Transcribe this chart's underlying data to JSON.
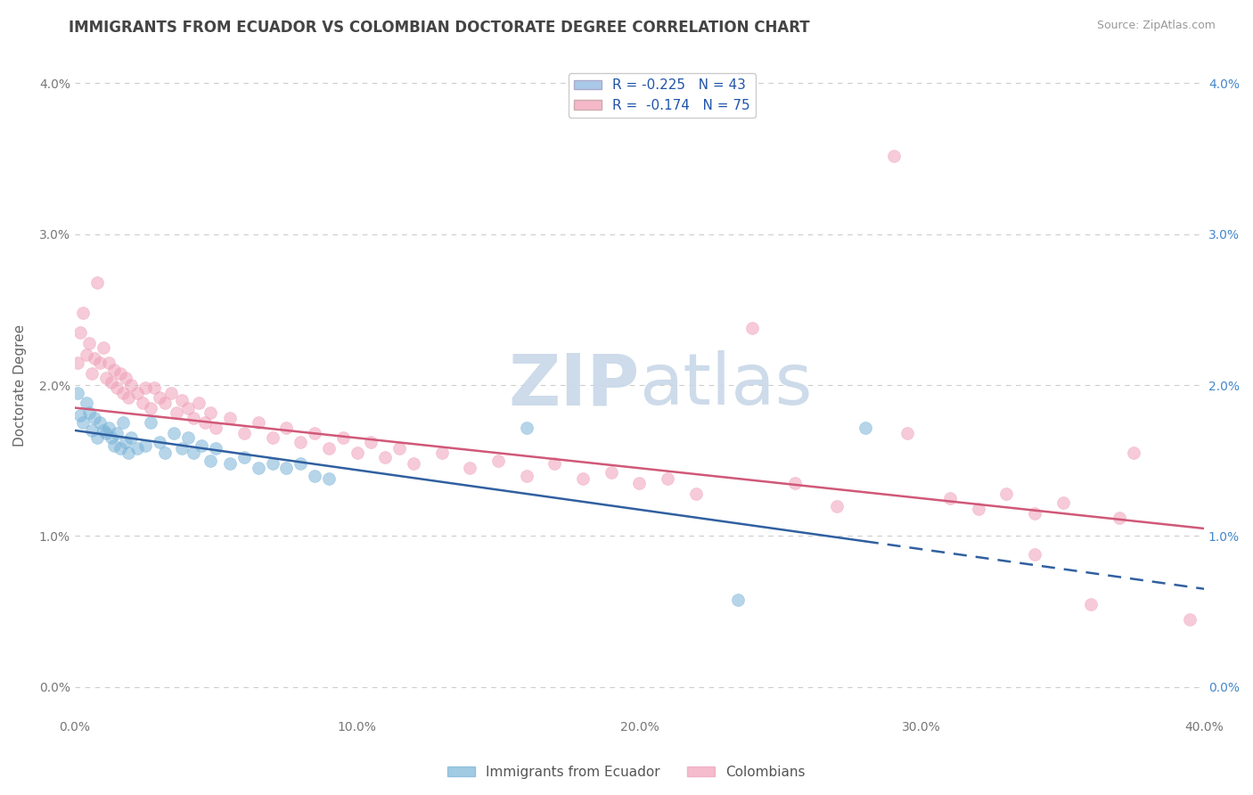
{
  "title": "IMMIGRANTS FROM ECUADOR VS COLOMBIAN DOCTORATE DEGREE CORRELATION CHART",
  "source": "Source: ZipAtlas.com",
  "ylabel": "Doctorate Degree",
  "watermark_zip": "ZIP",
  "watermark_atlas": "atlas",
  "legend_ecuador": {
    "R": -0.225,
    "N": 43,
    "color": "#aac8e8"
  },
  "legend_colombian": {
    "R": -0.174,
    "N": 75,
    "color": "#f4b8c8"
  },
  "ecuador_color": "#7ab4d8",
  "colombian_color": "#f0a0b8",
  "ecuador_line_color": "#3060a0",
  "colombian_line_color": "#d05878",
  "background_color": "#ffffff",
  "grid_color": "#cccccc",
  "xlim": [
    0.0,
    0.4
  ],
  "ylim": [
    -0.002,
    0.042
  ],
  "ecuador_points": [
    [
      0.001,
      0.0195
    ],
    [
      0.002,
      0.018
    ],
    [
      0.003,
      0.0175
    ],
    [
      0.004,
      0.0188
    ],
    [
      0.005,
      0.0182
    ],
    [
      0.006,
      0.017
    ],
    [
      0.007,
      0.0178
    ],
    [
      0.008,
      0.0165
    ],
    [
      0.009,
      0.0175
    ],
    [
      0.01,
      0.017
    ],
    [
      0.011,
      0.0168
    ],
    [
      0.012,
      0.0172
    ],
    [
      0.013,
      0.0165
    ],
    [
      0.014,
      0.016
    ],
    [
      0.015,
      0.0168
    ],
    [
      0.016,
      0.0158
    ],
    [
      0.017,
      0.0175
    ],
    [
      0.018,
      0.0162
    ],
    [
      0.019,
      0.0155
    ],
    [
      0.02,
      0.0165
    ],
    [
      0.022,
      0.0158
    ],
    [
      0.025,
      0.016
    ],
    [
      0.027,
      0.0175
    ],
    [
      0.03,
      0.0162
    ],
    [
      0.032,
      0.0155
    ],
    [
      0.035,
      0.0168
    ],
    [
      0.038,
      0.0158
    ],
    [
      0.04,
      0.0165
    ],
    [
      0.042,
      0.0155
    ],
    [
      0.045,
      0.016
    ],
    [
      0.048,
      0.015
    ],
    [
      0.05,
      0.0158
    ],
    [
      0.055,
      0.0148
    ],
    [
      0.06,
      0.0152
    ],
    [
      0.065,
      0.0145
    ],
    [
      0.07,
      0.0148
    ],
    [
      0.075,
      0.0145
    ],
    [
      0.08,
      0.0148
    ],
    [
      0.085,
      0.014
    ],
    [
      0.09,
      0.0138
    ],
    [
      0.16,
      0.0172
    ],
    [
      0.235,
      0.0058
    ],
    [
      0.28,
      0.0172
    ]
  ],
  "colombian_points": [
    [
      0.001,
      0.0215
    ],
    [
      0.002,
      0.0235
    ],
    [
      0.003,
      0.0248
    ],
    [
      0.004,
      0.022
    ],
    [
      0.005,
      0.0228
    ],
    [
      0.006,
      0.0208
    ],
    [
      0.007,
      0.0218
    ],
    [
      0.008,
      0.0268
    ],
    [
      0.009,
      0.0215
    ],
    [
      0.01,
      0.0225
    ],
    [
      0.011,
      0.0205
    ],
    [
      0.012,
      0.0215
    ],
    [
      0.013,
      0.0202
    ],
    [
      0.014,
      0.021
    ],
    [
      0.015,
      0.0198
    ],
    [
      0.016,
      0.0208
    ],
    [
      0.017,
      0.0195
    ],
    [
      0.018,
      0.0205
    ],
    [
      0.019,
      0.0192
    ],
    [
      0.02,
      0.02
    ],
    [
      0.022,
      0.0195
    ],
    [
      0.024,
      0.0188
    ],
    [
      0.025,
      0.0198
    ],
    [
      0.027,
      0.0185
    ],
    [
      0.028,
      0.0198
    ],
    [
      0.03,
      0.0192
    ],
    [
      0.032,
      0.0188
    ],
    [
      0.034,
      0.0195
    ],
    [
      0.036,
      0.0182
    ],
    [
      0.038,
      0.019
    ],
    [
      0.04,
      0.0185
    ],
    [
      0.042,
      0.0178
    ],
    [
      0.044,
      0.0188
    ],
    [
      0.046,
      0.0175
    ],
    [
      0.048,
      0.0182
    ],
    [
      0.05,
      0.0172
    ],
    [
      0.055,
      0.0178
    ],
    [
      0.06,
      0.0168
    ],
    [
      0.065,
      0.0175
    ],
    [
      0.07,
      0.0165
    ],
    [
      0.075,
      0.0172
    ],
    [
      0.08,
      0.0162
    ],
    [
      0.085,
      0.0168
    ],
    [
      0.09,
      0.0158
    ],
    [
      0.095,
      0.0165
    ],
    [
      0.1,
      0.0155
    ],
    [
      0.105,
      0.0162
    ],
    [
      0.11,
      0.0152
    ],
    [
      0.115,
      0.0158
    ],
    [
      0.12,
      0.0148
    ],
    [
      0.13,
      0.0155
    ],
    [
      0.14,
      0.0145
    ],
    [
      0.15,
      0.015
    ],
    [
      0.16,
      0.014
    ],
    [
      0.17,
      0.0148
    ],
    [
      0.18,
      0.0138
    ],
    [
      0.19,
      0.0142
    ],
    [
      0.2,
      0.0135
    ],
    [
      0.21,
      0.0138
    ],
    [
      0.22,
      0.0128
    ],
    [
      0.24,
      0.0238
    ],
    [
      0.255,
      0.0135
    ],
    [
      0.27,
      0.012
    ],
    [
      0.29,
      0.0352
    ],
    [
      0.295,
      0.0168
    ],
    [
      0.31,
      0.0125
    ],
    [
      0.32,
      0.0118
    ],
    [
      0.33,
      0.0128
    ],
    [
      0.34,
      0.0115
    ],
    [
      0.35,
      0.0122
    ],
    [
      0.37,
      0.0112
    ],
    [
      0.375,
      0.0155
    ],
    [
      0.395,
      0.0045
    ],
    [
      0.34,
      0.0088
    ],
    [
      0.36,
      0.0055
    ]
  ],
  "title_fontsize": 12,
  "axis_label_fontsize": 11,
  "tick_fontsize": 10,
  "legend_fontsize": 11,
  "marker_size": 100,
  "marker_alpha": 0.55,
  "yticks": [
    0.0,
    0.01,
    0.02,
    0.03,
    0.04
  ],
  "ytick_labels": [
    "0.0%",
    "1.0%",
    "2.0%",
    "3.0%",
    "4.0%"
  ],
  "xticks": [
    0.0,
    0.1,
    0.2,
    0.3,
    0.4
  ],
  "xtick_labels": [
    "0.0%",
    "10.0%",
    "20.0%",
    "30.0%",
    "40.0%"
  ],
  "right_ytick_color": "#4488cc"
}
